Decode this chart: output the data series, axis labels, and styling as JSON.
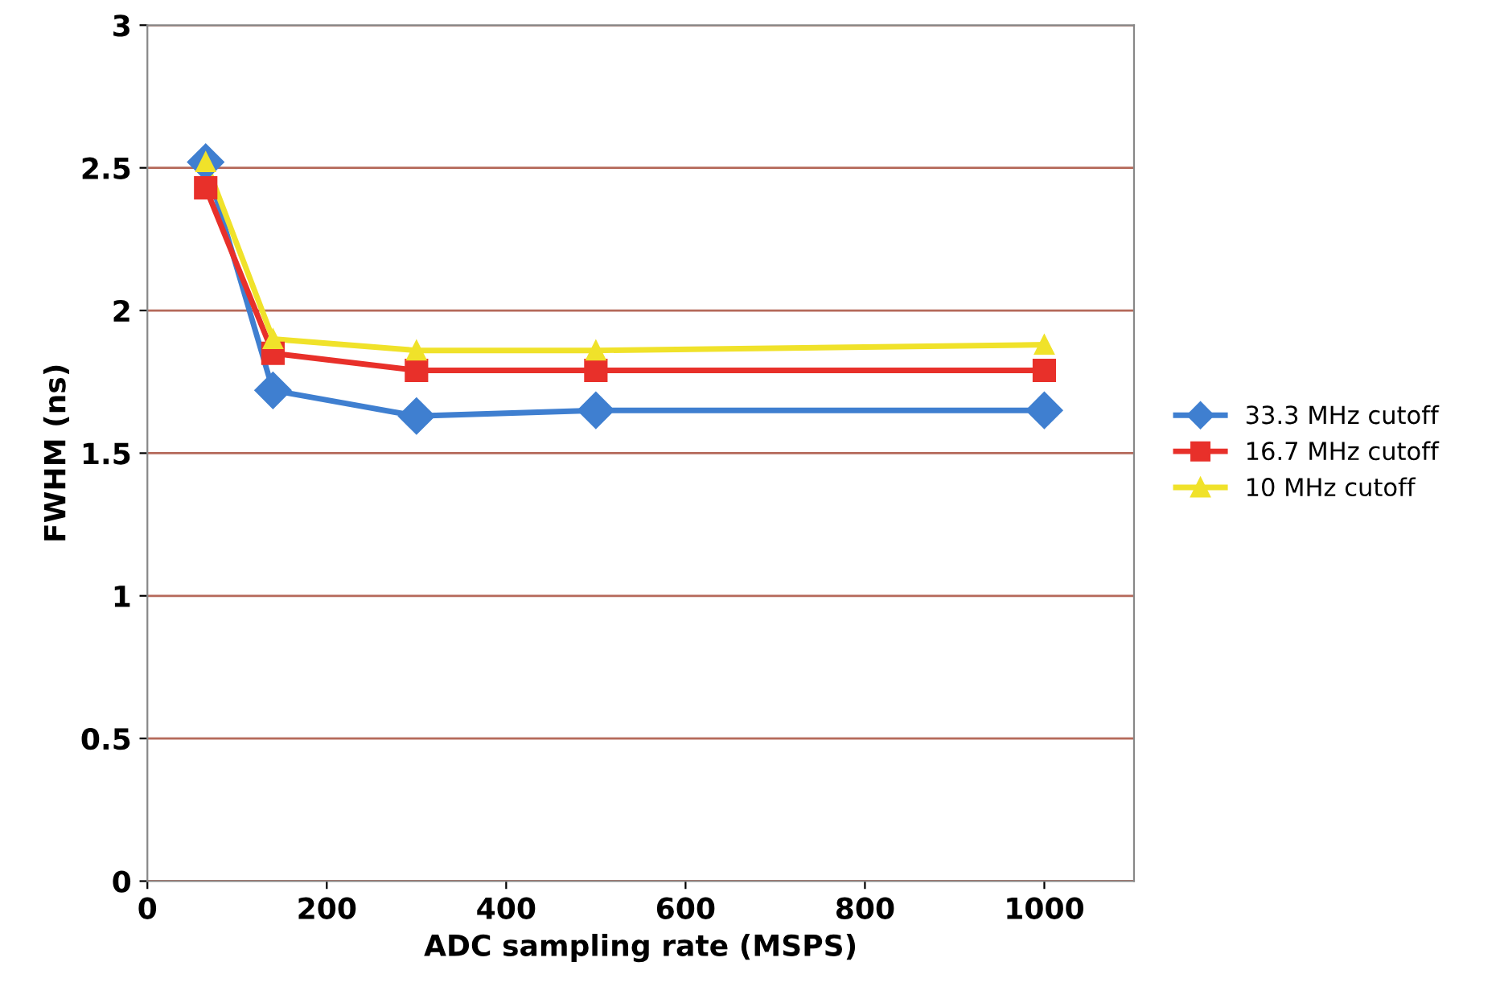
{
  "chart_data": {
    "type": "line",
    "xlabel": "ADC sampling rate (MSPS)",
    "ylabel": "FWHM (ns)",
    "x": [
      65,
      140,
      300,
      500,
      1000
    ],
    "series": [
      {
        "name": "33.3 MHz cutoff",
        "color": "#3f7fd0",
        "marker": "diamond",
        "values": [
          2.52,
          1.72,
          1.63,
          1.65,
          1.65
        ]
      },
      {
        "name": "16.7 MHz cutoff",
        "color": "#e8302a",
        "marker": "square",
        "values": [
          2.43,
          1.85,
          1.79,
          1.79,
          1.79
        ]
      },
      {
        "name": "10 MHz cutoff",
        "color": "#f0e22a",
        "marker": "triangle",
        "values": [
          2.52,
          1.9,
          1.86,
          1.86,
          1.88
        ]
      }
    ],
    "xlim": [
      0,
      1100
    ],
    "xticks": [
      0,
      200,
      400,
      600,
      800,
      1000
    ],
    "ylim": [
      0,
      3
    ],
    "yticks": [
      0,
      0.5,
      1,
      1.5,
      2,
      2.5,
      3
    ],
    "grid": "y",
    "legend": "right"
  }
}
